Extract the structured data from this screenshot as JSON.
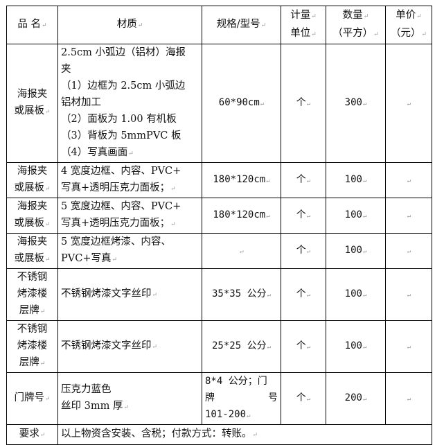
{
  "header": {
    "name": "品 名",
    "material": "材质",
    "spec": "规格/型号",
    "unit": "计量\n单位",
    "qty": "数量\n（平方）",
    "price": "单价\n（元）",
    "unit_lines": [
      "计量",
      "单位"
    ],
    "qty_lines": [
      "数量",
      "（平方）"
    ],
    "price_lines": [
      "单价",
      "（元）"
    ]
  },
  "rows": [
    {
      "name_lines": [
        "海报夹",
        "或展板"
      ],
      "material_lines": [
        "2.5cm 小弧边（铝材）海报",
        "夹",
        "（1）边框为 2.5cm 小弧边",
        "铝材加工",
        "（2）面板为 1.00 有机板",
        "（3）背板为 5mmPVC 板",
        "（4）写真画面"
      ],
      "spec": "60*90cm",
      "unit": "个",
      "qty": "300",
      "price": ""
    },
    {
      "name_lines": [
        "海报夹",
        "或展板"
      ],
      "material_lines": [
        "4 宽度边框、内容、PVC+",
        "写真+透明压克力面板；"
      ],
      "spec": "180*120cm",
      "unit": "个",
      "qty": "100",
      "price": ""
    },
    {
      "name_lines": [
        "海报夹",
        "或展板"
      ],
      "material_lines": [
        "5 宽度边框、内容、PVC+",
        "写真+透明压克力面板；"
      ],
      "spec": "180*120cm",
      "unit": "个",
      "qty": "100",
      "price": ""
    },
    {
      "name_lines": [
        "海报夹",
        "或展板"
      ],
      "material_lines": [
        "5 宽度边框烤漆、内容、",
        "PVC+写真"
      ],
      "spec": "",
      "unit": "个",
      "qty": "100",
      "price": ""
    },
    {
      "name_lines": [
        "不锈钢",
        "烤漆楼",
        "层牌"
      ],
      "material_lines": [
        "不锈钢烤漆文字丝印"
      ],
      "spec": "35*35 公分",
      "unit": "个",
      "qty": "100",
      "price": ""
    },
    {
      "name_lines": [
        "不锈钢",
        "烤漆楼",
        "层牌"
      ],
      "material_lines": [
        "不锈钢烤漆文字丝印"
      ],
      "spec": "25*25 公分",
      "unit": "个",
      "qty": "100",
      "price": ""
    },
    {
      "name_lines": [
        "门牌号"
      ],
      "material_lines": [
        "压克力蓝色",
        "丝印 3mm 厚"
      ],
      "spec_lines": [
        "8*4 公分；门",
        "牌",
        "号",
        "101-200"
      ],
      "unit": "个",
      "qty": "200",
      "price": ""
    }
  ],
  "footer": {
    "label": "要求",
    "text": "以上物资含安装、含税；付款方式：转账。"
  }
}
